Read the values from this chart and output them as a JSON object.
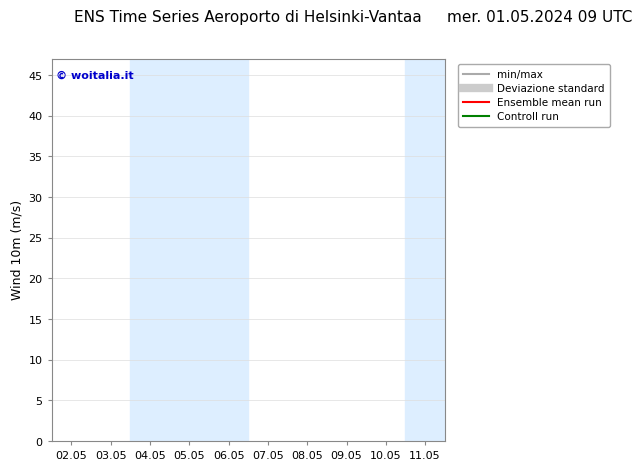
{
  "title_left": "ENS Time Series Aeroporto di Helsinki-Vantaa",
  "title_right": "mer. 01.05.2024 09 UTC",
  "ylabel": "Wind 10m (m/s)",
  "ylim": [
    0,
    47
  ],
  "yticks": [
    0,
    5,
    10,
    15,
    20,
    25,
    30,
    35,
    40,
    45
  ],
  "xtick_labels": [
    "02.05",
    "03.05",
    "04.05",
    "05.05",
    "06.05",
    "07.05",
    "08.05",
    "09.05",
    "10.05",
    "11.05"
  ],
  "xtick_positions": [
    0,
    1,
    2,
    3,
    4,
    5,
    6,
    7,
    8,
    9
  ],
  "xmin": -0.5,
  "xmax": 9.5,
  "shaded_ranges": [
    [
      1.5,
      4.5
    ],
    [
      8.5,
      9.5
    ]
  ],
  "shade_color": "#ddeeff",
  "background_color": "#ffffff",
  "watermark_text": "© woitalia.it",
  "watermark_color": "#0000cc",
  "legend_entries": [
    {
      "label": "min/max",
      "color": "#aaaaaa",
      "lw": 1.5
    },
    {
      "label": "Deviazione standard",
      "color": "#cccccc",
      "lw": 6
    },
    {
      "label": "Ensemble mean run",
      "color": "#ff0000",
      "lw": 1.5
    },
    {
      "label": "Controll run",
      "color": "#008000",
      "lw": 1.5
    }
  ],
  "title_fontsize": 11,
  "axis_fontsize": 9,
  "tick_fontsize": 8,
  "watermark_fontsize": 8,
  "legend_fontsize": 7.5
}
